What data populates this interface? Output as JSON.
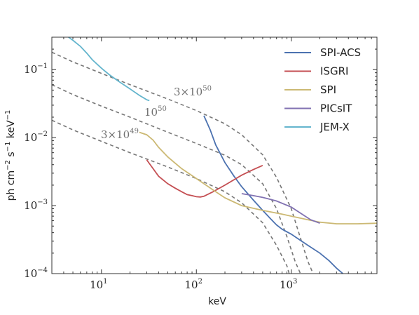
{
  "chart_data": {
    "type": "line",
    "xlabel": "keV",
    "ylabel_parts": [
      "ph cm",
      "−2",
      " s",
      "−1",
      " keV",
      "−1"
    ],
    "x_scale": "log",
    "y_scale": "log",
    "xlim": [
      3,
      8000
    ],
    "ylim": [
      0.0001,
      0.3
    ],
    "x_ticks": [
      {
        "value": 10,
        "base": "10",
        "exp": "1"
      },
      {
        "value": 100,
        "base": "10",
        "exp": "2"
      },
      {
        "value": 1000,
        "base": "10",
        "exp": "3"
      }
    ],
    "y_ticks": [
      {
        "value": 0.0001,
        "base": "10",
        "exp": "−4"
      },
      {
        "value": 0.001,
        "base": "10",
        "exp": "−3"
      },
      {
        "value": 0.01,
        "base": "10",
        "exp": "−2"
      },
      {
        "value": 0.1,
        "base": "10",
        "exp": "−1"
      }
    ],
    "grid": false,
    "legend_position": "top-right",
    "series": [
      {
        "name": "SPI-ACS",
        "color": "#4c72b0",
        "points": [
          [
            120,
            0.021
          ],
          [
            140,
            0.013
          ],
          [
            160,
            0.0078
          ],
          [
            200,
            0.0043
          ],
          [
            250,
            0.0027
          ],
          [
            300,
            0.0019
          ],
          [
            400,
            0.0012
          ],
          [
            500,
            0.00085
          ],
          [
            600,
            0.00065
          ],
          [
            700,
            0.00052
          ],
          [
            800,
            0.00045
          ],
          [
            1000,
            0.00038
          ],
          [
            1200,
            0.00032
          ],
          [
            1500,
            0.00026
          ],
          [
            2000,
            0.0002
          ],
          [
            2500,
            0.000155
          ],
          [
            3000,
            0.00012
          ],
          [
            3500,
            0.0001
          ]
        ]
      },
      {
        "name": "ISGRI",
        "color": "#c44e52",
        "points": [
          [
            30,
            0.0047
          ],
          [
            35,
            0.0035
          ],
          [
            40,
            0.0027
          ],
          [
            50,
            0.0021
          ],
          [
            60,
            0.0018
          ],
          [
            70,
            0.0016
          ],
          [
            80,
            0.00145
          ],
          [
            90,
            0.0014
          ],
          [
            100,
            0.00135
          ],
          [
            110,
            0.00134
          ],
          [
            120,
            0.00137
          ],
          [
            150,
            0.0016
          ],
          [
            200,
            0.002
          ],
          [
            300,
            0.0028
          ],
          [
            400,
            0.0034
          ],
          [
            500,
            0.0039
          ]
        ]
      },
      {
        "name": "SPI",
        "color": "#ccb974",
        "points": [
          [
            25,
            0.012
          ],
          [
            30,
            0.011
          ],
          [
            35,
            0.0092
          ],
          [
            40,
            0.0072
          ],
          [
            50,
            0.0052
          ],
          [
            70,
            0.0035
          ],
          [
            100,
            0.0025
          ],
          [
            150,
            0.0017
          ],
          [
            200,
            0.0013
          ],
          [
            300,
            0.001
          ],
          [
            500,
            0.00085
          ],
          [
            800,
            0.00075
          ],
          [
            1000,
            0.0007
          ],
          [
            1500,
            0.00062
          ],
          [
            2000,
            0.00057
          ],
          [
            3000,
            0.00054
          ],
          [
            5000,
            0.00054
          ],
          [
            8000,
            0.00055
          ]
        ]
      },
      {
        "name": "PICsIT",
        "color": "#8172b2",
        "points": [
          [
            300,
            0.0015
          ],
          [
            400,
            0.0014
          ],
          [
            500,
            0.00132
          ],
          [
            700,
            0.00117
          ],
          [
            1000,
            0.00095
          ],
          [
            1300,
            0.00075
          ],
          [
            1600,
            0.00062
          ],
          [
            2000,
            0.00055
          ]
        ]
      },
      {
        "name": "JEM-X",
        "color": "#64b5cd",
        "points": [
          [
            4.5,
            0.3
          ],
          [
            5,
            0.27
          ],
          [
            6,
            0.22
          ],
          [
            7,
            0.175
          ],
          [
            8,
            0.14
          ],
          [
            10,
            0.105
          ],
          [
            12,
            0.085
          ],
          [
            15,
            0.068
          ],
          [
            20,
            0.052
          ],
          [
            25,
            0.042
          ],
          [
            30,
            0.036
          ],
          [
            32,
            0.035
          ]
        ]
      }
    ],
    "model_curves": [
      {
        "label_base": "3×10",
        "label_exp": "50",
        "color": "#777777",
        "dash": "5,4",
        "points": [
          [
            3,
            0.18
          ],
          [
            5,
            0.13
          ],
          [
            10,
            0.088
          ],
          [
            20,
            0.06
          ],
          [
            50,
            0.037
          ],
          [
            100,
            0.025
          ],
          [
            200,
            0.016
          ],
          [
            300,
            0.011
          ],
          [
            500,
            0.0056
          ],
          [
            700,
            0.0026
          ],
          [
            1000,
            0.0009
          ],
          [
            1200,
            0.0004
          ],
          [
            1500,
            0.00015
          ],
          [
            1700,
            0.0001
          ]
        ]
      },
      {
        "label_base": "10",
        "label_exp": "50",
        "color": "#777777",
        "dash": "5,4",
        "points": [
          [
            3,
            0.06
          ],
          [
            5,
            0.043
          ],
          [
            10,
            0.029
          ],
          [
            20,
            0.02
          ],
          [
            50,
            0.012
          ],
          [
            100,
            0.0082
          ],
          [
            200,
            0.0055
          ],
          [
            300,
            0.004
          ],
          [
            500,
            0.0021
          ],
          [
            700,
            0.0009
          ],
          [
            900,
            0.00035
          ],
          [
            1100,
            0.00015
          ],
          [
            1250,
            0.0001
          ]
        ]
      },
      {
        "label_base": "3×10",
        "label_exp": "49",
        "color": "#777777",
        "dash": "5,4",
        "points": [
          [
            3,
            0.018
          ],
          [
            5,
            0.013
          ],
          [
            10,
            0.0088
          ],
          [
            20,
            0.006
          ],
          [
            50,
            0.0037
          ],
          [
            100,
            0.0025
          ],
          [
            200,
            0.0016
          ],
          [
            300,
            0.0011
          ],
          [
            500,
            0.00056
          ],
          [
            700,
            0.00026
          ],
          [
            900,
            0.00013
          ],
          [
            950,
            0.0001
          ]
        ]
      }
    ]
  }
}
